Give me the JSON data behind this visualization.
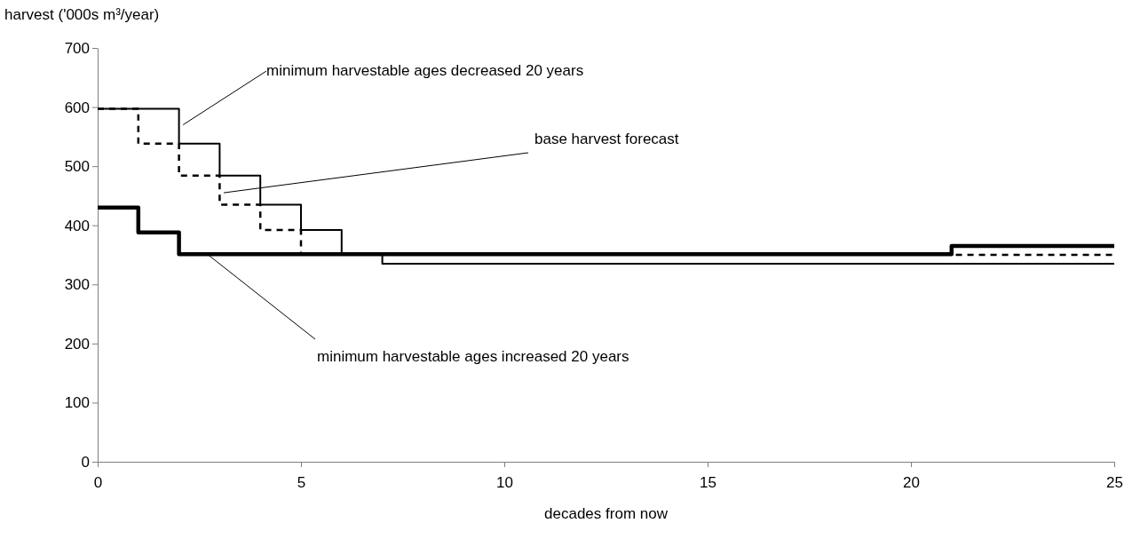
{
  "chart_data": {
    "type": "step",
    "xlabel": "decades from now",
    "ylabel": "harvest ('000s m³/year)",
    "xlim": [
      0,
      25
    ],
    "xticks": [
      0,
      5,
      10,
      15,
      20,
      25
    ],
    "ylim": [
      0,
      700
    ],
    "yticks": [
      0,
      100,
      200,
      300,
      400,
      500,
      600,
      700
    ],
    "marker": "none",
    "series": [
      {
        "color": "#000000",
        "line_style": "solid",
        "x": [
          0,
          2,
          3,
          4,
          5,
          6,
          7,
          25
        ],
        "values": [
          597,
          538,
          484,
          435,
          392,
          352,
          335,
          335
        ]
      },
      {
        "color": "#000000",
        "line_style": "dashed",
        "x": [
          0,
          1,
          2,
          3,
          4,
          5,
          21,
          25
        ],
        "values": [
          597,
          538,
          484,
          435,
          392,
          352,
          350,
          350
        ]
      },
      {
        "color": "#000000",
        "line_style": "solid",
        "x": [
          0,
          1,
          2,
          21,
          25
        ],
        "values": [
          430,
          388,
          351,
          365,
          365
        ]
      }
    ],
    "annotations": [
      {
        "text": "minimum harvestable ages decreased 20 years",
        "x": 2.1,
        "y": 570
      },
      {
        "text": "base harvest forecast",
        "x": 3.1,
        "y": 455
      },
      {
        "text": "minimum harvestable ages increased 20 years",
        "x": 2.7,
        "y": 351
      }
    ]
  }
}
